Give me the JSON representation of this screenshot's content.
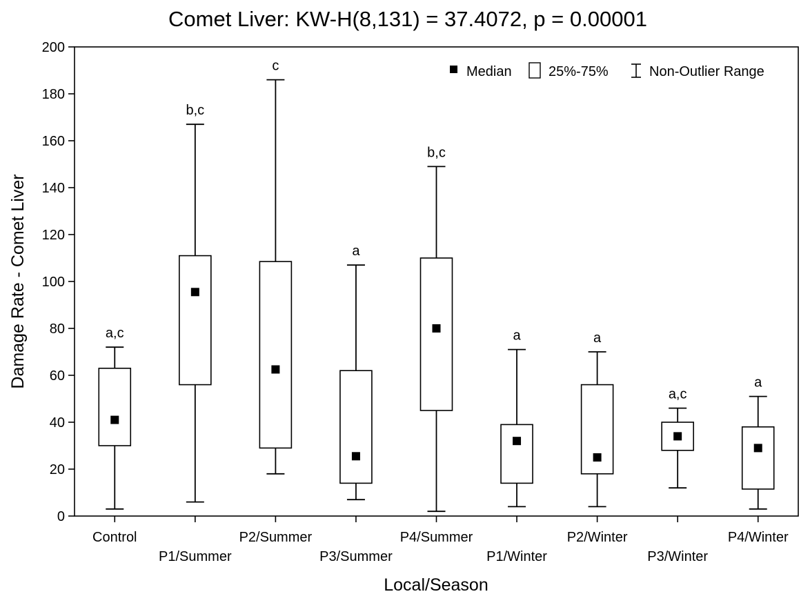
{
  "chart_data": {
    "type": "box",
    "title": "Comet Liver:  KW-H(8,131) = 37.4072, p = 0.00001",
    "xlabel": "Local/Season",
    "ylabel": "Damage Rate - Comet Liver",
    "ylim": [
      0,
      200
    ],
    "yticks": [
      0,
      20,
      40,
      60,
      80,
      100,
      120,
      140,
      160,
      180,
      200
    ],
    "grid": false,
    "legend_position": "top-right",
    "legend": {
      "median": "Median",
      "box": "25%-75%",
      "whisker": "Non-Outlier Range"
    },
    "categories": [
      "Control",
      "P1/Summer",
      "P2/Summer",
      "P3/Summer",
      "P4/Summer",
      "P1/Winter",
      "P2/Winter",
      "P3/Winter",
      "P4/Winter"
    ],
    "groups": [
      {
        "category": "Control",
        "min": 3,
        "q1": 30,
        "median": 41,
        "q3": 63,
        "max": 72,
        "letter": "a,c"
      },
      {
        "category": "P1/Summer",
        "min": 6,
        "q1": 56,
        "median": 95.5,
        "q3": 111,
        "max": 167,
        "letter": "b,c"
      },
      {
        "category": "P2/Summer",
        "min": 18,
        "q1": 29,
        "median": 62.5,
        "q3": 108.5,
        "max": 186,
        "letter": "c"
      },
      {
        "category": "P3/Summer",
        "min": 7,
        "q1": 14,
        "median": 25.5,
        "q3": 62,
        "max": 107,
        "letter": "a"
      },
      {
        "category": "P4/Summer",
        "min": 2,
        "q1": 45,
        "median": 80,
        "q3": 110,
        "max": 149,
        "letter": "b,c"
      },
      {
        "category": "P1/Winter",
        "min": 4,
        "q1": 14,
        "median": 32,
        "q3": 39,
        "max": 71,
        "letter": "a"
      },
      {
        "category": "P2/Winter",
        "min": 4,
        "q1": 18,
        "median": 25,
        "q3": 56,
        "max": 70,
        "letter": "a"
      },
      {
        "category": "P3/Winter",
        "min": 12,
        "q1": 28,
        "median": 34,
        "q3": 40,
        "max": 46,
        "letter": "a,c"
      },
      {
        "category": "P4/Winter",
        "min": 3,
        "q1": 11.5,
        "median": 29,
        "q3": 38,
        "max": 51,
        "letter": "a"
      }
    ]
  }
}
